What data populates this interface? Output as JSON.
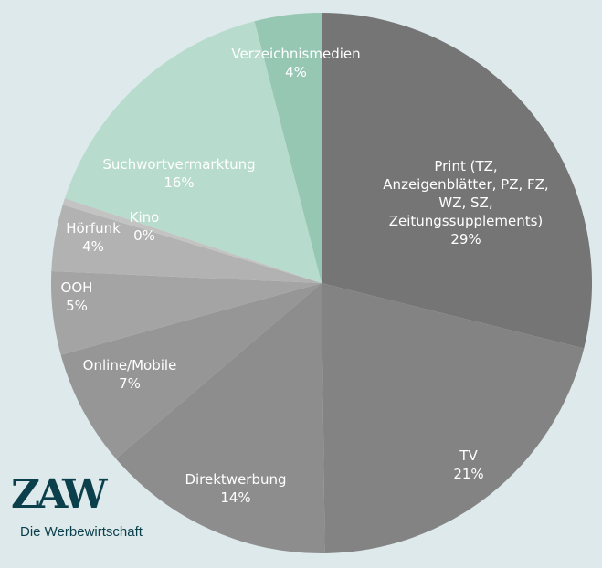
{
  "chart_data": {
    "type": "pie",
    "slices": [
      {
        "label": "Print (TZ, Anzeigenblätter, PZ, FZ, WZ, SZ, Zeitungssupplements)",
        "lines": [
          "Print (TZ,",
          "Anzeigenblätter, PZ, FZ,",
          "WZ, SZ,",
          "Zeitungssupplements)"
        ],
        "percent_label": "29%",
        "value": 29,
        "color": "#757575"
      },
      {
        "label": "TV",
        "lines": [
          "TV"
        ],
        "percent_label": "21%",
        "value": 21,
        "color": "#838383"
      },
      {
        "label": "Direktwerbung",
        "lines": [
          "Direktwerbung"
        ],
        "percent_label": "14%",
        "value": 14,
        "color": "#8d8d8d"
      },
      {
        "label": "Online/Mobile",
        "lines": [
          "Online/Mobile"
        ],
        "percent_label": "7%",
        "value": 7,
        "color": "#969696"
      },
      {
        "label": "OOH",
        "lines": [
          "OOH"
        ],
        "percent_label": "5%",
        "value": 5,
        "color": "#a4a4a4"
      },
      {
        "label": "Hörfunk",
        "lines": [
          "Hörfunk"
        ],
        "percent_label": "4%",
        "value": 4,
        "color": "#b2b2b2"
      },
      {
        "label": "Kino",
        "lines": [
          "Kino"
        ],
        "percent_label": "0%",
        "value": 0.4,
        "color": "#c3c3c3"
      },
      {
        "label": "Suchwortvermarktung",
        "lines": [
          "Suchwortvermarktung"
        ],
        "percent_label": "16%",
        "value": 16,
        "color": "#b7dbcd"
      },
      {
        "label": "Verzeichnismedien",
        "lines": [
          "Verzeichnismedien"
        ],
        "percent_label": "4%",
        "value": 4,
        "color": "#95c7b3"
      }
    ]
  },
  "logo": {
    "mark": "ZAW",
    "subtitle": "Die Werbewirtschaft"
  }
}
